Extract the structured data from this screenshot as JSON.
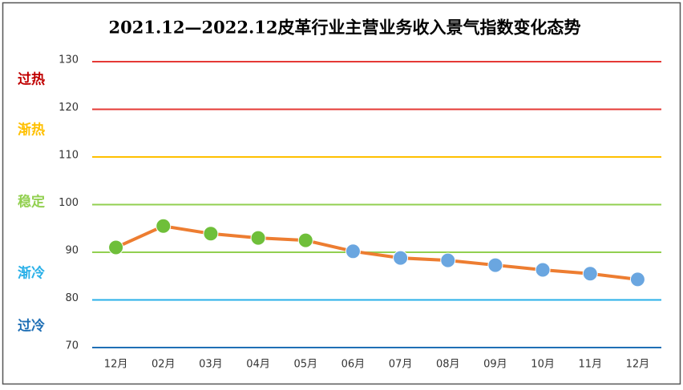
{
  "chart_data": {
    "type": "line",
    "title": "2021.12—2022.12皮革行业主营业务收入景气指数变化态势",
    "categories": [
      "12月",
      "02月",
      "03月",
      "04月",
      "05月",
      "06月",
      "07月",
      "08月",
      "09月",
      "10月",
      "11月",
      "12月"
    ],
    "series": [
      {
        "name": "景气指数",
        "color": "#ed7d31",
        "values": [
          91.0,
          95.5,
          93.9,
          93.0,
          92.5,
          90.2,
          88.8,
          88.3,
          87.3,
          86.3,
          85.5,
          84.3
        ]
      }
    ],
    "point_colors": [
      "#6fbf3a",
      "#6fbf3a",
      "#6fbf3a",
      "#6fbf3a",
      "#6fbf3a",
      "#6aa6e0",
      "#6aa6e0",
      "#6aa6e0",
      "#6aa6e0",
      "#6aa6e0",
      "#6aa6e0",
      "#6aa6e0"
    ],
    "ylim": [
      70,
      130
    ],
    "yticks": [
      70,
      80,
      90,
      100,
      110,
      120,
      130
    ],
    "grid_colors": [
      "#1f6fb5",
      "#2ab0e8",
      "#92d050",
      "#92d050",
      "#ffc000",
      "#e53935",
      "#e53935"
    ],
    "zones": [
      {
        "label": "过热",
        "color": "#c00000"
      },
      {
        "label": "渐热",
        "color": "#ffc000"
      },
      {
        "label": "稳定",
        "color": "#92d050"
      },
      {
        "label": "渐冷",
        "color": "#2ab0e8"
      },
      {
        "label": "过冷",
        "color": "#1f6fb5"
      }
    ]
  }
}
